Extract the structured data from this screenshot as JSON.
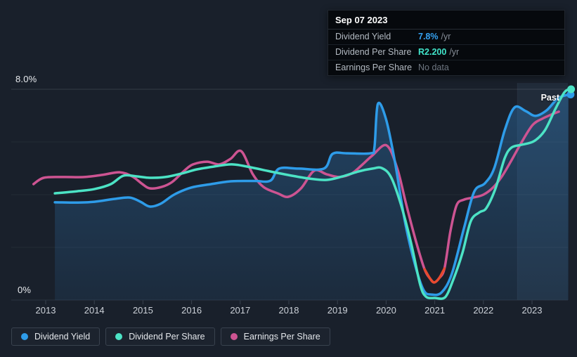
{
  "axis": {
    "y_top_label": "8.0%",
    "y_bottom_label": "0%"
  },
  "past_label": "Past",
  "tooltip": {
    "date": "Sep 07 2023",
    "rows": [
      {
        "label": "Dividend Yield",
        "value": "7.8%",
        "suffix": "/yr",
        "value_color": "#35a2f2",
        "muted": false
      },
      {
        "label": "Dividend Per Share",
        "value": "R2.200",
        "suffix": "/yr",
        "value_color": "#41e4ca",
        "muted": false
      },
      {
        "label": "Earnings Per Share",
        "value": "No data",
        "suffix": "",
        "value_color": "#6e7681",
        "muted": true
      }
    ]
  },
  "legend": {
    "items": [
      {
        "label": "Dividend Yield",
        "color": "#2e9ce9"
      },
      {
        "label": "Dividend Per Share",
        "color": "#4ce3c5"
      },
      {
        "label": "Earnings Per Share",
        "color": "#cd5492"
      }
    ]
  },
  "chart_data": {
    "type": "line",
    "xlim": [
      2012.6,
      2023.85
    ],
    "ylim": [
      0,
      8
    ],
    "x_ticks": [
      2013,
      2014,
      2015,
      2016,
      2017,
      2018,
      2019,
      2020,
      2021,
      2022,
      2023
    ],
    "y_gridlines_pct": [
      0,
      2,
      4,
      6,
      8
    ],
    "y_axis_unit": "%",
    "grid": true,
    "legend_position": "bottom-left",
    "past_band_start": 2022.7,
    "series": [
      {
        "name": "Earnings Per Share",
        "color": "#cd5492",
        "fill": false,
        "marker_end": false,
        "points": [
          [
            2012.75,
            4.4
          ],
          [
            2012.96,
            4.64
          ],
          [
            2013.36,
            4.67
          ],
          [
            2013.79,
            4.67
          ],
          [
            2014.16,
            4.75
          ],
          [
            2014.52,
            4.85
          ],
          [
            2014.78,
            4.69
          ],
          [
            2014.99,
            4.4
          ],
          [
            2015.14,
            4.24
          ],
          [
            2015.38,
            4.29
          ],
          [
            2015.6,
            4.48
          ],
          [
            2015.85,
            4.91
          ],
          [
            2016.03,
            5.15
          ],
          [
            2016.32,
            5.25
          ],
          [
            2016.57,
            5.15
          ],
          [
            2016.8,
            5.36
          ],
          [
            2017.02,
            5.65
          ],
          [
            2017.26,
            4.77
          ],
          [
            2017.48,
            4.29
          ],
          [
            2017.77,
            4.05
          ],
          [
            2017.99,
            3.92
          ],
          [
            2018.25,
            4.24
          ],
          [
            2018.52,
            4.91
          ],
          [
            2018.78,
            4.77
          ],
          [
            2019.04,
            4.67
          ],
          [
            2019.29,
            4.8
          ],
          [
            2019.5,
            5.12
          ],
          [
            2019.72,
            5.49
          ],
          [
            2020.01,
            5.87
          ],
          [
            2020.23,
            4.99
          ],
          [
            2020.41,
            3.65
          ],
          [
            2020.62,
            2.19
          ],
          [
            2020.79,
            1.17
          ],
          [
            2020.91,
            0.8
          ],
          [
            2020.99,
            0.67
          ],
          [
            2021.09,
            0.83
          ],
          [
            2021.2,
            1.2
          ],
          [
            2021.32,
            2.59
          ],
          [
            2021.45,
            3.6
          ],
          [
            2021.6,
            3.81
          ],
          [
            2021.79,
            3.89
          ],
          [
            2022.0,
            4.0
          ],
          [
            2022.21,
            4.29
          ],
          [
            2022.39,
            4.72
          ],
          [
            2022.58,
            5.31
          ],
          [
            2022.78,
            5.97
          ],
          [
            2023.01,
            6.64
          ],
          [
            2023.21,
            6.88
          ],
          [
            2023.4,
            7.04
          ],
          [
            2023.55,
            7.15
          ]
        ]
      },
      {
        "name": "Earnings Per Share (negative stretch highlight)",
        "color": "#e84a2e",
        "fill": false,
        "marker_end": false,
        "points": [
          [
            2020.79,
            1.17
          ],
          [
            2020.91,
            0.8
          ],
          [
            2020.99,
            0.67
          ],
          [
            2021.09,
            0.83
          ],
          [
            2021.2,
            1.2
          ]
        ]
      },
      {
        "name": "Dividend Yield",
        "color": "#2e9ce9",
        "fill": true,
        "marker_end": true,
        "points": [
          [
            2013.19,
            3.71
          ],
          [
            2013.65,
            3.7
          ],
          [
            2014.0,
            3.73
          ],
          [
            2014.42,
            3.84
          ],
          [
            2014.73,
            3.89
          ],
          [
            2014.95,
            3.73
          ],
          [
            2015.14,
            3.55
          ],
          [
            2015.36,
            3.65
          ],
          [
            2015.64,
            4.0
          ],
          [
            2015.99,
            4.27
          ],
          [
            2016.4,
            4.4
          ],
          [
            2016.83,
            4.51
          ],
          [
            2017.3,
            4.52
          ],
          [
            2017.62,
            4.53
          ],
          [
            2017.8,
            4.99
          ],
          [
            2018.2,
            4.99
          ],
          [
            2018.72,
            4.99
          ],
          [
            2018.9,
            5.55
          ],
          [
            2019.2,
            5.57
          ],
          [
            2019.68,
            5.57
          ],
          [
            2019.76,
            5.8
          ],
          [
            2019.83,
            7.44
          ],
          [
            2020.0,
            6.85
          ],
          [
            2020.18,
            5.25
          ],
          [
            2020.4,
            2.85
          ],
          [
            2020.62,
            1.17
          ],
          [
            2020.78,
            0.35
          ],
          [
            2020.93,
            0.21
          ],
          [
            2021.14,
            0.29
          ],
          [
            2021.35,
            0.99
          ],
          [
            2021.6,
            2.72
          ],
          [
            2021.81,
            4.11
          ],
          [
            2022.03,
            4.43
          ],
          [
            2022.22,
            4.99
          ],
          [
            2022.44,
            6.45
          ],
          [
            2022.64,
            7.31
          ],
          [
            2022.87,
            7.17
          ],
          [
            2023.07,
            6.99
          ],
          [
            2023.3,
            7.2
          ],
          [
            2023.53,
            7.65
          ],
          [
            2023.75,
            7.8
          ]
        ]
      },
      {
        "name": "Dividend Per Share",
        "color": "#4ce3c5",
        "fill": false,
        "marker_end": true,
        "points": [
          [
            2013.19,
            4.05
          ],
          [
            2013.65,
            4.13
          ],
          [
            2014.0,
            4.21
          ],
          [
            2014.34,
            4.4
          ],
          [
            2014.6,
            4.72
          ],
          [
            2014.89,
            4.69
          ],
          [
            2015.14,
            4.64
          ],
          [
            2015.46,
            4.67
          ],
          [
            2015.79,
            4.8
          ],
          [
            2016.11,
            4.96
          ],
          [
            2016.47,
            5.07
          ],
          [
            2016.83,
            5.15
          ],
          [
            2017.21,
            5.04
          ],
          [
            2017.62,
            4.88
          ],
          [
            2018.06,
            4.72
          ],
          [
            2018.42,
            4.61
          ],
          [
            2018.78,
            4.56
          ],
          [
            2019.1,
            4.69
          ],
          [
            2019.43,
            4.88
          ],
          [
            2019.72,
            4.99
          ],
          [
            2019.91,
            5.01
          ],
          [
            2020.1,
            4.67
          ],
          [
            2020.3,
            3.65
          ],
          [
            2020.51,
            2.19
          ],
          [
            2020.7,
            0.59
          ],
          [
            2020.82,
            0.13
          ],
          [
            2021.0,
            0.08
          ],
          [
            2021.21,
            0.1
          ],
          [
            2021.38,
            0.77
          ],
          [
            2021.57,
            1.79
          ],
          [
            2021.74,
            2.99
          ],
          [
            2021.92,
            3.33
          ],
          [
            2022.06,
            3.49
          ],
          [
            2022.25,
            4.24
          ],
          [
            2022.44,
            5.39
          ],
          [
            2022.58,
            5.79
          ],
          [
            2022.78,
            5.89
          ],
          [
            2023.04,
            6.03
          ],
          [
            2023.26,
            6.43
          ],
          [
            2023.48,
            7.25
          ],
          [
            2023.66,
            7.87
          ],
          [
            2023.76,
            8.0
          ]
        ]
      }
    ]
  }
}
